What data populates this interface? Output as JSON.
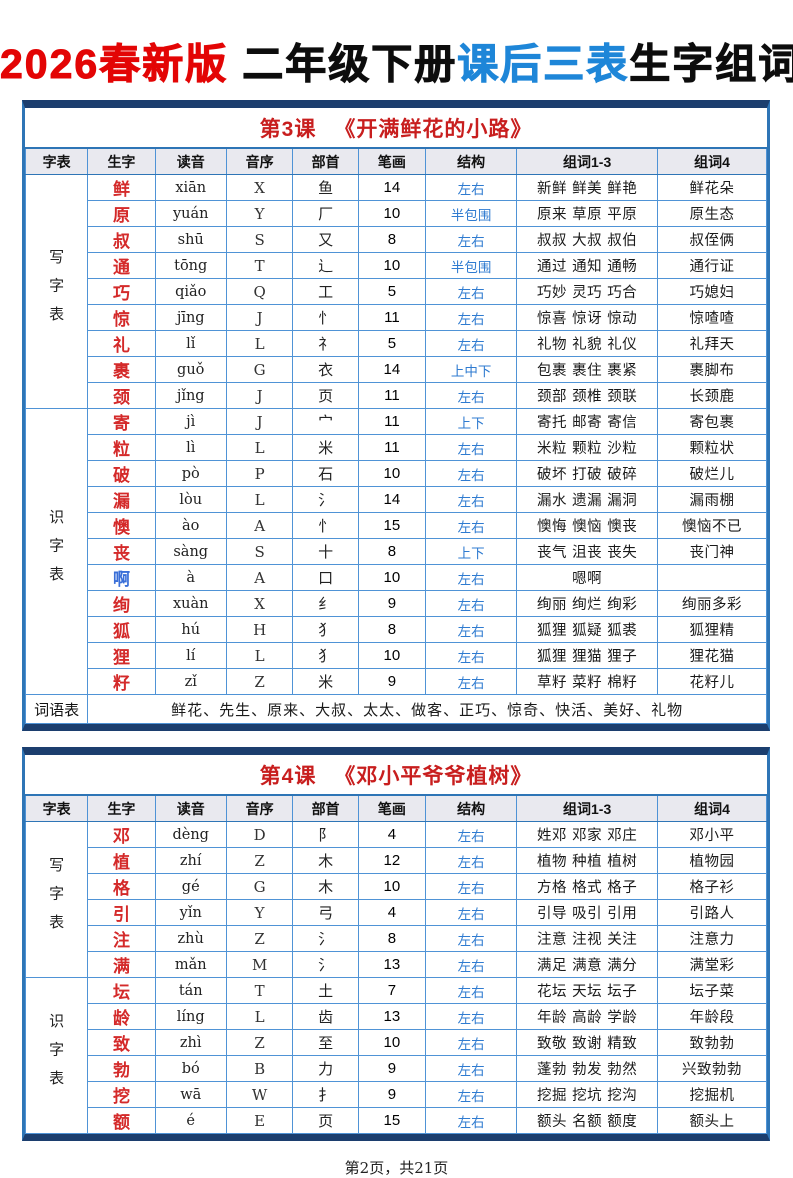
{
  "page_title": {
    "edition": "2026春新版",
    "grade": "二年级下册",
    "highlight": "课后三表",
    "suffix": "生字组词"
  },
  "columns": [
    "字表",
    "生字",
    "读音",
    "音序",
    "部首",
    "笔画",
    "结构",
    "组词1-3",
    "组词4"
  ],
  "tables": [
    {
      "lesson": "第3课",
      "book_title": "《开满鲜花的小路》",
      "sections": [
        {
          "label": "写字表",
          "rows": [
            {
              "char": "鲜",
              "color": "red",
              "pinyin": "xiān",
              "initial": "X",
              "radical": "鱼",
              "strokes": "14",
              "structure": "左右",
              "words": "新鲜 鲜美 鲜艳",
              "words4": "鲜花朵"
            },
            {
              "char": "原",
              "color": "red",
              "pinyin": "yuán",
              "initial": "Y",
              "radical": "厂",
              "strokes": "10",
              "structure": "半包围",
              "words": "原来 草原 平原",
              "words4": "原生态"
            },
            {
              "char": "叔",
              "color": "red",
              "pinyin": "shū",
              "initial": "S",
              "radical": "又",
              "strokes": "8",
              "structure": "左右",
              "words": "叔叔 大叔 叔伯",
              "words4": "叔侄俩"
            },
            {
              "char": "通",
              "color": "red",
              "pinyin": "tōng",
              "initial": "T",
              "radical": "辶",
              "strokes": "10",
              "structure": "半包围",
              "words": "通过 通知 通畅",
              "words4": "通行证"
            },
            {
              "char": "巧",
              "color": "red",
              "pinyin": "qiǎo",
              "initial": "Q",
              "radical": "工",
              "strokes": "5",
              "structure": "左右",
              "words": "巧妙 灵巧 巧合",
              "words4": "巧媳妇"
            },
            {
              "char": "惊",
              "color": "red",
              "pinyin": "jīng",
              "initial": "J",
              "radical": "忄",
              "strokes": "11",
              "structure": "左右",
              "words": "惊喜 惊讶 惊动",
              "words4": "惊喳喳"
            },
            {
              "char": "礼",
              "color": "red",
              "pinyin": "lǐ",
              "initial": "L",
              "radical": "礻",
              "strokes": "5",
              "structure": "左右",
              "words": "礼物 礼貌 礼仪",
              "words4": "礼拜天"
            },
            {
              "char": "裹",
              "color": "red",
              "pinyin": "guǒ",
              "initial": "G",
              "radical": "衣",
              "strokes": "14",
              "structure": "上中下",
              "words": "包裹 裹住 裹紧",
              "words4": "裹脚布"
            },
            {
              "char": "颈",
              "color": "red",
              "pinyin": "jǐng",
              "initial": "J",
              "radical": "页",
              "strokes": "11",
              "structure": "左右",
              "words": "颈部 颈椎 颈联",
              "words4": "长颈鹿"
            }
          ]
        },
        {
          "label": "识字表",
          "rows": [
            {
              "char": "寄",
              "color": "red",
              "pinyin": "jì",
              "initial": "J",
              "radical": "宀",
              "strokes": "11",
              "structure": "上下",
              "words": "寄托 邮寄 寄信",
              "words4": "寄包裹"
            },
            {
              "char": "粒",
              "color": "red",
              "pinyin": "lì",
              "initial": "L",
              "radical": "米",
              "strokes": "11",
              "structure": "左右",
              "words": "米粒 颗粒 沙粒",
              "words4": "颗粒状"
            },
            {
              "char": "破",
              "color": "red",
              "pinyin": "pò",
              "initial": "P",
              "radical": "石",
              "strokes": "10",
              "structure": "左右",
              "words": "破坏 打破 破碎",
              "words4": "破烂儿"
            },
            {
              "char": "漏",
              "color": "red",
              "pinyin": "lòu",
              "initial": "L",
              "radical": "氵",
              "strokes": "14",
              "structure": "左右",
              "words": "漏水 遗漏 漏洞",
              "words4": "漏雨棚"
            },
            {
              "char": "懊",
              "color": "red",
              "pinyin": "ào",
              "initial": "A",
              "radical": "忄",
              "strokes": "15",
              "structure": "左右",
              "words": "懊悔 懊恼 懊丧",
              "words4": "懊恼不已"
            },
            {
              "char": "丧",
              "color": "red",
              "pinyin": "sàng",
              "initial": "S",
              "radical": "十",
              "strokes": "8",
              "structure": "上下",
              "words": "丧气 沮丧 丧失",
              "words4": "丧门神"
            },
            {
              "char": "啊",
              "color": "blue",
              "pinyin": "à",
              "initial": "A",
              "radical": "口",
              "strokes": "10",
              "structure": "左右",
              "words": "嗯啊",
              "words4": ""
            },
            {
              "char": "绚",
              "color": "red",
              "pinyin": "xuàn",
              "initial": "X",
              "radical": "纟",
              "strokes": "9",
              "structure": "左右",
              "words": "绚丽 绚烂 绚彩",
              "words4": "绚丽多彩"
            },
            {
              "char": "狐",
              "color": "red",
              "pinyin": "hú",
              "initial": "H",
              "radical": "犭",
              "strokes": "8",
              "structure": "左右",
              "words": "狐狸 狐疑 狐裘",
              "words4": "狐狸精"
            },
            {
              "char": "狸",
              "color": "red",
              "pinyin": "lí",
              "initial": "L",
              "radical": "犭",
              "strokes": "10",
              "structure": "左右",
              "words": "狐狸 狸猫 狸子",
              "words4": "狸花猫"
            },
            {
              "char": "籽",
              "color": "red",
              "pinyin": "zǐ",
              "initial": "Z",
              "radical": "米",
              "strokes": "9",
              "structure": "左右",
              "words": "草籽 菜籽 棉籽",
              "words4": "花籽儿"
            }
          ]
        }
      ],
      "word_list_label": "词语表",
      "word_list": "鲜花、先生、原来、大叔、太太、做客、正巧、惊奇、快活、美好、礼物"
    },
    {
      "lesson": "第4课",
      "book_title": "《邓小平爷爷植树》",
      "sections": [
        {
          "label": "写字表",
          "rows": [
            {
              "char": "邓",
              "color": "red",
              "pinyin": "dèng",
              "initial": "D",
              "radical": "阝",
              "strokes": "4",
              "structure": "左右",
              "words": "姓邓 邓家 邓庄",
              "words4": "邓小平"
            },
            {
              "char": "植",
              "color": "red",
              "pinyin": "zhí",
              "initial": "Z",
              "radical": "木",
              "strokes": "12",
              "structure": "左右",
              "words": "植物 种植 植树",
              "words4": "植物园"
            },
            {
              "char": "格",
              "color": "red",
              "pinyin": "gé",
              "initial": "G",
              "radical": "木",
              "strokes": "10",
              "structure": "左右",
              "words": "方格 格式 格子",
              "words4": "格子衫"
            },
            {
              "char": "引",
              "color": "red",
              "pinyin": "yǐn",
              "initial": "Y",
              "radical": "弓",
              "strokes": "4",
              "structure": "左右",
              "words": "引导 吸引 引用",
              "words4": "引路人"
            },
            {
              "char": "注",
              "color": "red",
              "pinyin": "zhù",
              "initial": "Z",
              "radical": "氵",
              "strokes": "8",
              "structure": "左右",
              "words": "注意 注视 关注",
              "words4": "注意力"
            },
            {
              "char": "满",
              "color": "red",
              "pinyin": "mǎn",
              "initial": "M",
              "radical": "氵",
              "strokes": "13",
              "structure": "左右",
              "words": "满足 满意 满分",
              "words4": "满堂彩"
            }
          ]
        },
        {
          "label": "识字表",
          "rows": [
            {
              "char": "坛",
              "color": "red",
              "pinyin": "tán",
              "initial": "T",
              "radical": "土",
              "strokes": "7",
              "structure": "左右",
              "words": "花坛 天坛 坛子",
              "words4": "坛子菜"
            },
            {
              "char": "龄",
              "color": "red",
              "pinyin": "líng",
              "initial": "L",
              "radical": "齿",
              "strokes": "13",
              "structure": "左右",
              "words": "年龄 高龄 学龄",
              "words4": "年龄段"
            },
            {
              "char": "致",
              "color": "red",
              "pinyin": "zhì",
              "initial": "Z",
              "radical": "至",
              "strokes": "10",
              "structure": "左右",
              "words": "致敬 致谢 精致",
              "words4": "致勃勃"
            },
            {
              "char": "勃",
              "color": "red",
              "pinyin": "bó",
              "initial": "B",
              "radical": "力",
              "strokes": "9",
              "structure": "左右",
              "words": "蓬勃 勃发 勃然",
              "words4": "兴致勃勃"
            },
            {
              "char": "挖",
              "color": "red",
              "pinyin": "wā",
              "initial": "W",
              "radical": "扌",
              "strokes": "9",
              "structure": "左右",
              "words": "挖掘 挖坑 挖沟",
              "words4": "挖掘机"
            },
            {
              "char": "额",
              "color": "red",
              "pinyin": "é",
              "initial": "E",
              "radical": "页",
              "strokes": "15",
              "structure": "左右",
              "words": "额头 名额 额度",
              "words4": "额头上"
            }
          ]
        }
      ]
    }
  ],
  "footer": "第2页，共21页",
  "colors": {
    "title_red": "#e30505",
    "title_blue": "#1e86d8",
    "lesson_title_red": "#c81e1e",
    "char_red": "#d42a2a",
    "char_blue": "#3a6fd8",
    "structure_blue": "#2f7bd0",
    "grid_blue": "#4f93d6",
    "outer_border_blue": "#2e75b6",
    "band_navy": "#1c3e6e",
    "header_bg": "#e9e9ef"
  }
}
